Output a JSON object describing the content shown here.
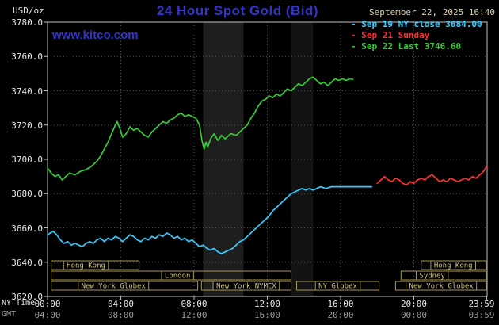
{
  "header": {
    "units": "USD/oz",
    "title": "24 Hour Spot Gold (Bid)",
    "datetime": "September 22, 2025 16:40",
    "watermark": "www.kitco.com"
  },
  "colors": {
    "cyan": "#33ccff",
    "red": "#ff3030",
    "green": "#33cc33",
    "blue": "#3434c8",
    "tan": "#a89a50",
    "tan_text": "#d2c37a",
    "grid": "#555555",
    "border": "#c0c0c0",
    "band": "#1e1e1e",
    "band2": "#131313"
  },
  "legend": {
    "items": [
      {
        "dash": "-",
        "label": "Sep 19 NY close 3684.00",
        "color_key": "cyan"
      },
      {
        "dash": "-",
        "label": "Sep 21 Sunday",
        "color_key": "red"
      },
      {
        "dash": "-",
        "label": "Sep 22 Last 3746.60",
        "color_key": "green"
      }
    ]
  },
  "axes": {
    "ny_label": "NY Time",
    "gmt_label": "GMT"
  },
  "chart_data": {
    "type": "line",
    "title": "24 Hour Spot Gold (Bid)",
    "ylabel": "USD/oz",
    "ylim": [
      3620,
      3780
    ],
    "x_range": [
      0,
      24
    ],
    "grid": "dotted",
    "y_ticks": [
      {
        "value": 3780,
        "label": "3780.0"
      },
      {
        "value": 3760,
        "label": "3760.0"
      },
      {
        "value": 3740,
        "label": "3740.0"
      },
      {
        "value": 3720,
        "label": "3720.0"
      },
      {
        "value": 3700,
        "label": "3700.0"
      },
      {
        "value": 3680,
        "label": "3680.0"
      },
      {
        "value": 3660,
        "label": "3660.0"
      },
      {
        "value": 3640,
        "label": "3640.0"
      },
      {
        "value": 3620,
        "label": "3620.0"
      }
    ],
    "x_ticks": [
      {
        "hour": 0,
        "ny": "00:00",
        "gmt": "04:00"
      },
      {
        "hour": 4,
        "ny": "04:00",
        "gmt": "08:00"
      },
      {
        "hour": 8,
        "ny": "08:00",
        "gmt": "12:00"
      },
      {
        "hour": 12,
        "ny": "12:00",
        "gmt": "16:00"
      },
      {
        "hour": 16,
        "ny": "16:00",
        "gmt": "20:00"
      },
      {
        "hour": 20,
        "ny": "20:00",
        "gmt": "00:00"
      },
      {
        "hour": 23.98,
        "ny": "23:59",
        "gmt": "03:59"
      }
    ],
    "bands": [
      {
        "start": 8.5,
        "end": 10.7,
        "color_key": "band"
      },
      {
        "start": 13.3,
        "end": 14.5,
        "color_key": "band2"
      }
    ],
    "series": [
      {
        "name": "Sep 19 NY close 3684.00",
        "color_key": "cyan",
        "points": [
          [
            0,
            3656
          ],
          [
            0.3,
            3658
          ],
          [
            0.5,
            3656
          ],
          [
            0.7,
            3653
          ],
          [
            0.9,
            3651
          ],
          [
            1.1,
            3652
          ],
          [
            1.3,
            3650
          ],
          [
            1.5,
            3651
          ],
          [
            1.7,
            3650
          ],
          [
            1.9,
            3649
          ],
          [
            2.1,
            3651
          ],
          [
            2.3,
            3652
          ],
          [
            2.5,
            3651
          ],
          [
            2.7,
            3653
          ],
          [
            2.9,
            3654
          ],
          [
            3.1,
            3652
          ],
          [
            3.3,
            3654
          ],
          [
            3.5,
            3653
          ],
          [
            3.7,
            3655
          ],
          [
            3.9,
            3654
          ],
          [
            4.1,
            3652
          ],
          [
            4.3,
            3654
          ],
          [
            4.5,
            3656
          ],
          [
            4.7,
            3655
          ],
          [
            4.9,
            3653
          ],
          [
            5.1,
            3652
          ],
          [
            5.3,
            3654
          ],
          [
            5.5,
            3653
          ],
          [
            5.7,
            3655
          ],
          [
            5.9,
            3654
          ],
          [
            6.1,
            3656
          ],
          [
            6.3,
            3655
          ],
          [
            6.5,
            3657
          ],
          [
            6.7,
            3656
          ],
          [
            6.9,
            3654
          ],
          [
            7.1,
            3655
          ],
          [
            7.3,
            3653
          ],
          [
            7.5,
            3654
          ],
          [
            7.7,
            3652
          ],
          [
            7.9,
            3653
          ],
          [
            8.1,
            3651
          ],
          [
            8.3,
            3649
          ],
          [
            8.5,
            3650
          ],
          [
            8.7,
            3648
          ],
          [
            8.9,
            3647
          ],
          [
            9.1,
            3648
          ],
          [
            9.3,
            3646
          ],
          [
            9.5,
            3645
          ],
          [
            9.7,
            3646
          ],
          [
            9.9,
            3647
          ],
          [
            10.1,
            3648
          ],
          [
            10.3,
            3650
          ],
          [
            10.5,
            3652
          ],
          [
            10.7,
            3653
          ],
          [
            10.9,
            3655
          ],
          [
            11.1,
            3657
          ],
          [
            11.3,
            3659
          ],
          [
            11.5,
            3661
          ],
          [
            11.7,
            3663
          ],
          [
            11.9,
            3665
          ],
          [
            12.1,
            3667
          ],
          [
            12.3,
            3670
          ],
          [
            12.5,
            3672
          ],
          [
            12.7,
            3674
          ],
          [
            12.9,
            3676
          ],
          [
            13.1,
            3678
          ],
          [
            13.3,
            3680
          ],
          [
            13.5,
            3681
          ],
          [
            13.7,
            3682
          ],
          [
            13.9,
            3683
          ],
          [
            14.1,
            3682
          ],
          [
            14.3,
            3683
          ],
          [
            14.5,
            3682
          ],
          [
            14.7,
            3683
          ],
          [
            14.9,
            3684
          ],
          [
            15.2,
            3683
          ],
          [
            15.5,
            3684
          ],
          [
            16,
            3684
          ],
          [
            16.5,
            3684
          ],
          [
            17,
            3684
          ],
          [
            17.7,
            3684
          ]
        ]
      },
      {
        "name": "Sep 21 Sunday",
        "color_key": "red",
        "points": [
          [
            18,
            3686
          ],
          [
            18.2,
            3688
          ],
          [
            18.4,
            3690
          ],
          [
            18.6,
            3688
          ],
          [
            18.8,
            3687
          ],
          [
            19,
            3689
          ],
          [
            19.2,
            3688
          ],
          [
            19.4,
            3686
          ],
          [
            19.6,
            3685
          ],
          [
            19.8,
            3687
          ],
          [
            20,
            3686
          ],
          [
            20.2,
            3688
          ],
          [
            20.4,
            3689
          ],
          [
            20.6,
            3688
          ],
          [
            20.8,
            3690
          ],
          [
            21,
            3691
          ],
          [
            21.2,
            3689
          ],
          [
            21.4,
            3687
          ],
          [
            21.6,
            3688
          ],
          [
            21.8,
            3687
          ],
          [
            22,
            3689
          ],
          [
            22.2,
            3688
          ],
          [
            22.4,
            3687
          ],
          [
            22.6,
            3688
          ],
          [
            22.8,
            3689
          ],
          [
            23,
            3688
          ],
          [
            23.2,
            3690
          ],
          [
            23.4,
            3689
          ],
          [
            23.6,
            3691
          ],
          [
            23.8,
            3693
          ],
          [
            23.98,
            3696
          ]
        ]
      },
      {
        "name": "Sep 22 Last 3746.60",
        "color_key": "green",
        "points": [
          [
            0,
            3695
          ],
          [
            0.2,
            3692
          ],
          [
            0.4,
            3690
          ],
          [
            0.6,
            3691
          ],
          [
            0.8,
            3688
          ],
          [
            1,
            3690
          ],
          [
            1.2,
            3692
          ],
          [
            1.5,
            3691
          ],
          [
            1.8,
            3693
          ],
          [
            2.1,
            3694
          ],
          [
            2.4,
            3696
          ],
          [
            2.7,
            3699
          ],
          [
            2.9,
            3702
          ],
          [
            3.1,
            3706
          ],
          [
            3.3,
            3710
          ],
          [
            3.5,
            3715
          ],
          [
            3.7,
            3720
          ],
          [
            3.8,
            3722
          ],
          [
            3.95,
            3718
          ],
          [
            4.1,
            3713
          ],
          [
            4.3,
            3715
          ],
          [
            4.5,
            3719
          ],
          [
            4.7,
            3717
          ],
          [
            4.9,
            3718
          ],
          [
            5.1,
            3716
          ],
          [
            5.3,
            3714
          ],
          [
            5.5,
            3713
          ],
          [
            5.7,
            3716
          ],
          [
            5.9,
            3718
          ],
          [
            6.1,
            3720
          ],
          [
            6.3,
            3722
          ],
          [
            6.5,
            3721
          ],
          [
            6.7,
            3723
          ],
          [
            6.9,
            3724
          ],
          [
            7.1,
            3726
          ],
          [
            7.3,
            3727
          ],
          [
            7.5,
            3725
          ],
          [
            7.7,
            3726
          ],
          [
            7.9,
            3725
          ],
          [
            8.1,
            3724
          ],
          [
            8.3,
            3720
          ],
          [
            8.45,
            3710
          ],
          [
            8.55,
            3706
          ],
          [
            8.65,
            3710
          ],
          [
            8.75,
            3707
          ],
          [
            8.9,
            3712
          ],
          [
            9.1,
            3715
          ],
          [
            9.3,
            3711
          ],
          [
            9.5,
            3714
          ],
          [
            9.7,
            3712
          ],
          [
            10,
            3715
          ],
          [
            10.3,
            3714
          ],
          [
            10.6,
            3717
          ],
          [
            10.9,
            3720
          ],
          [
            11.1,
            3724
          ],
          [
            11.3,
            3727
          ],
          [
            11.5,
            3731
          ],
          [
            11.7,
            3734
          ],
          [
            11.9,
            3735
          ],
          [
            12.1,
            3737
          ],
          [
            12.3,
            3736
          ],
          [
            12.5,
            3738
          ],
          [
            12.7,
            3737
          ],
          [
            12.9,
            3739
          ],
          [
            13.1,
            3741
          ],
          [
            13.3,
            3740
          ],
          [
            13.5,
            3742
          ],
          [
            13.7,
            3744
          ],
          [
            13.9,
            3743
          ],
          [
            14.1,
            3745
          ],
          [
            14.3,
            3747
          ],
          [
            14.5,
            3748
          ],
          [
            14.7,
            3746
          ],
          [
            14.9,
            3744
          ],
          [
            15.1,
            3745
          ],
          [
            15.3,
            3743
          ],
          [
            15.5,
            3745
          ],
          [
            15.7,
            3747
          ],
          [
            15.9,
            3746
          ],
          [
            16.1,
            3747
          ],
          [
            16.3,
            3746
          ],
          [
            16.5,
            3747
          ],
          [
            16.67,
            3746.6
          ]
        ]
      }
    ]
  },
  "sessions": {
    "rows": [
      [
        {
          "label": "Hong Kong",
          "start": 0.2,
          "end": 5.0,
          "label_at": 2.1
        },
        {
          "label": "Hong Kong",
          "start": 20.4,
          "end": 23.95,
          "label_at": 22.15
        }
      ],
      [
        {
          "label": "London",
          "start": 0.2,
          "end": 13.3,
          "label_at": 7.1
        },
        {
          "label": "Sydney",
          "start": 19.3,
          "end": 23.95,
          "label_at": 21.0
        }
      ],
      [
        {
          "label": "New York Globex",
          "start": 0.2,
          "end": 8.2,
          "label_at": 3.6
        },
        {
          "label": "New York NYMEX",
          "start": 8.4,
          "end": 13.3,
          "label_at": 10.85
        },
        {
          "label": "NY Globex",
          "start": 13.6,
          "end": 18.1,
          "label_at": 15.85
        },
        {
          "label": "New York Globex",
          "start": 19.0,
          "end": 23.95,
          "label_at": 21.5
        }
      ]
    ]
  }
}
